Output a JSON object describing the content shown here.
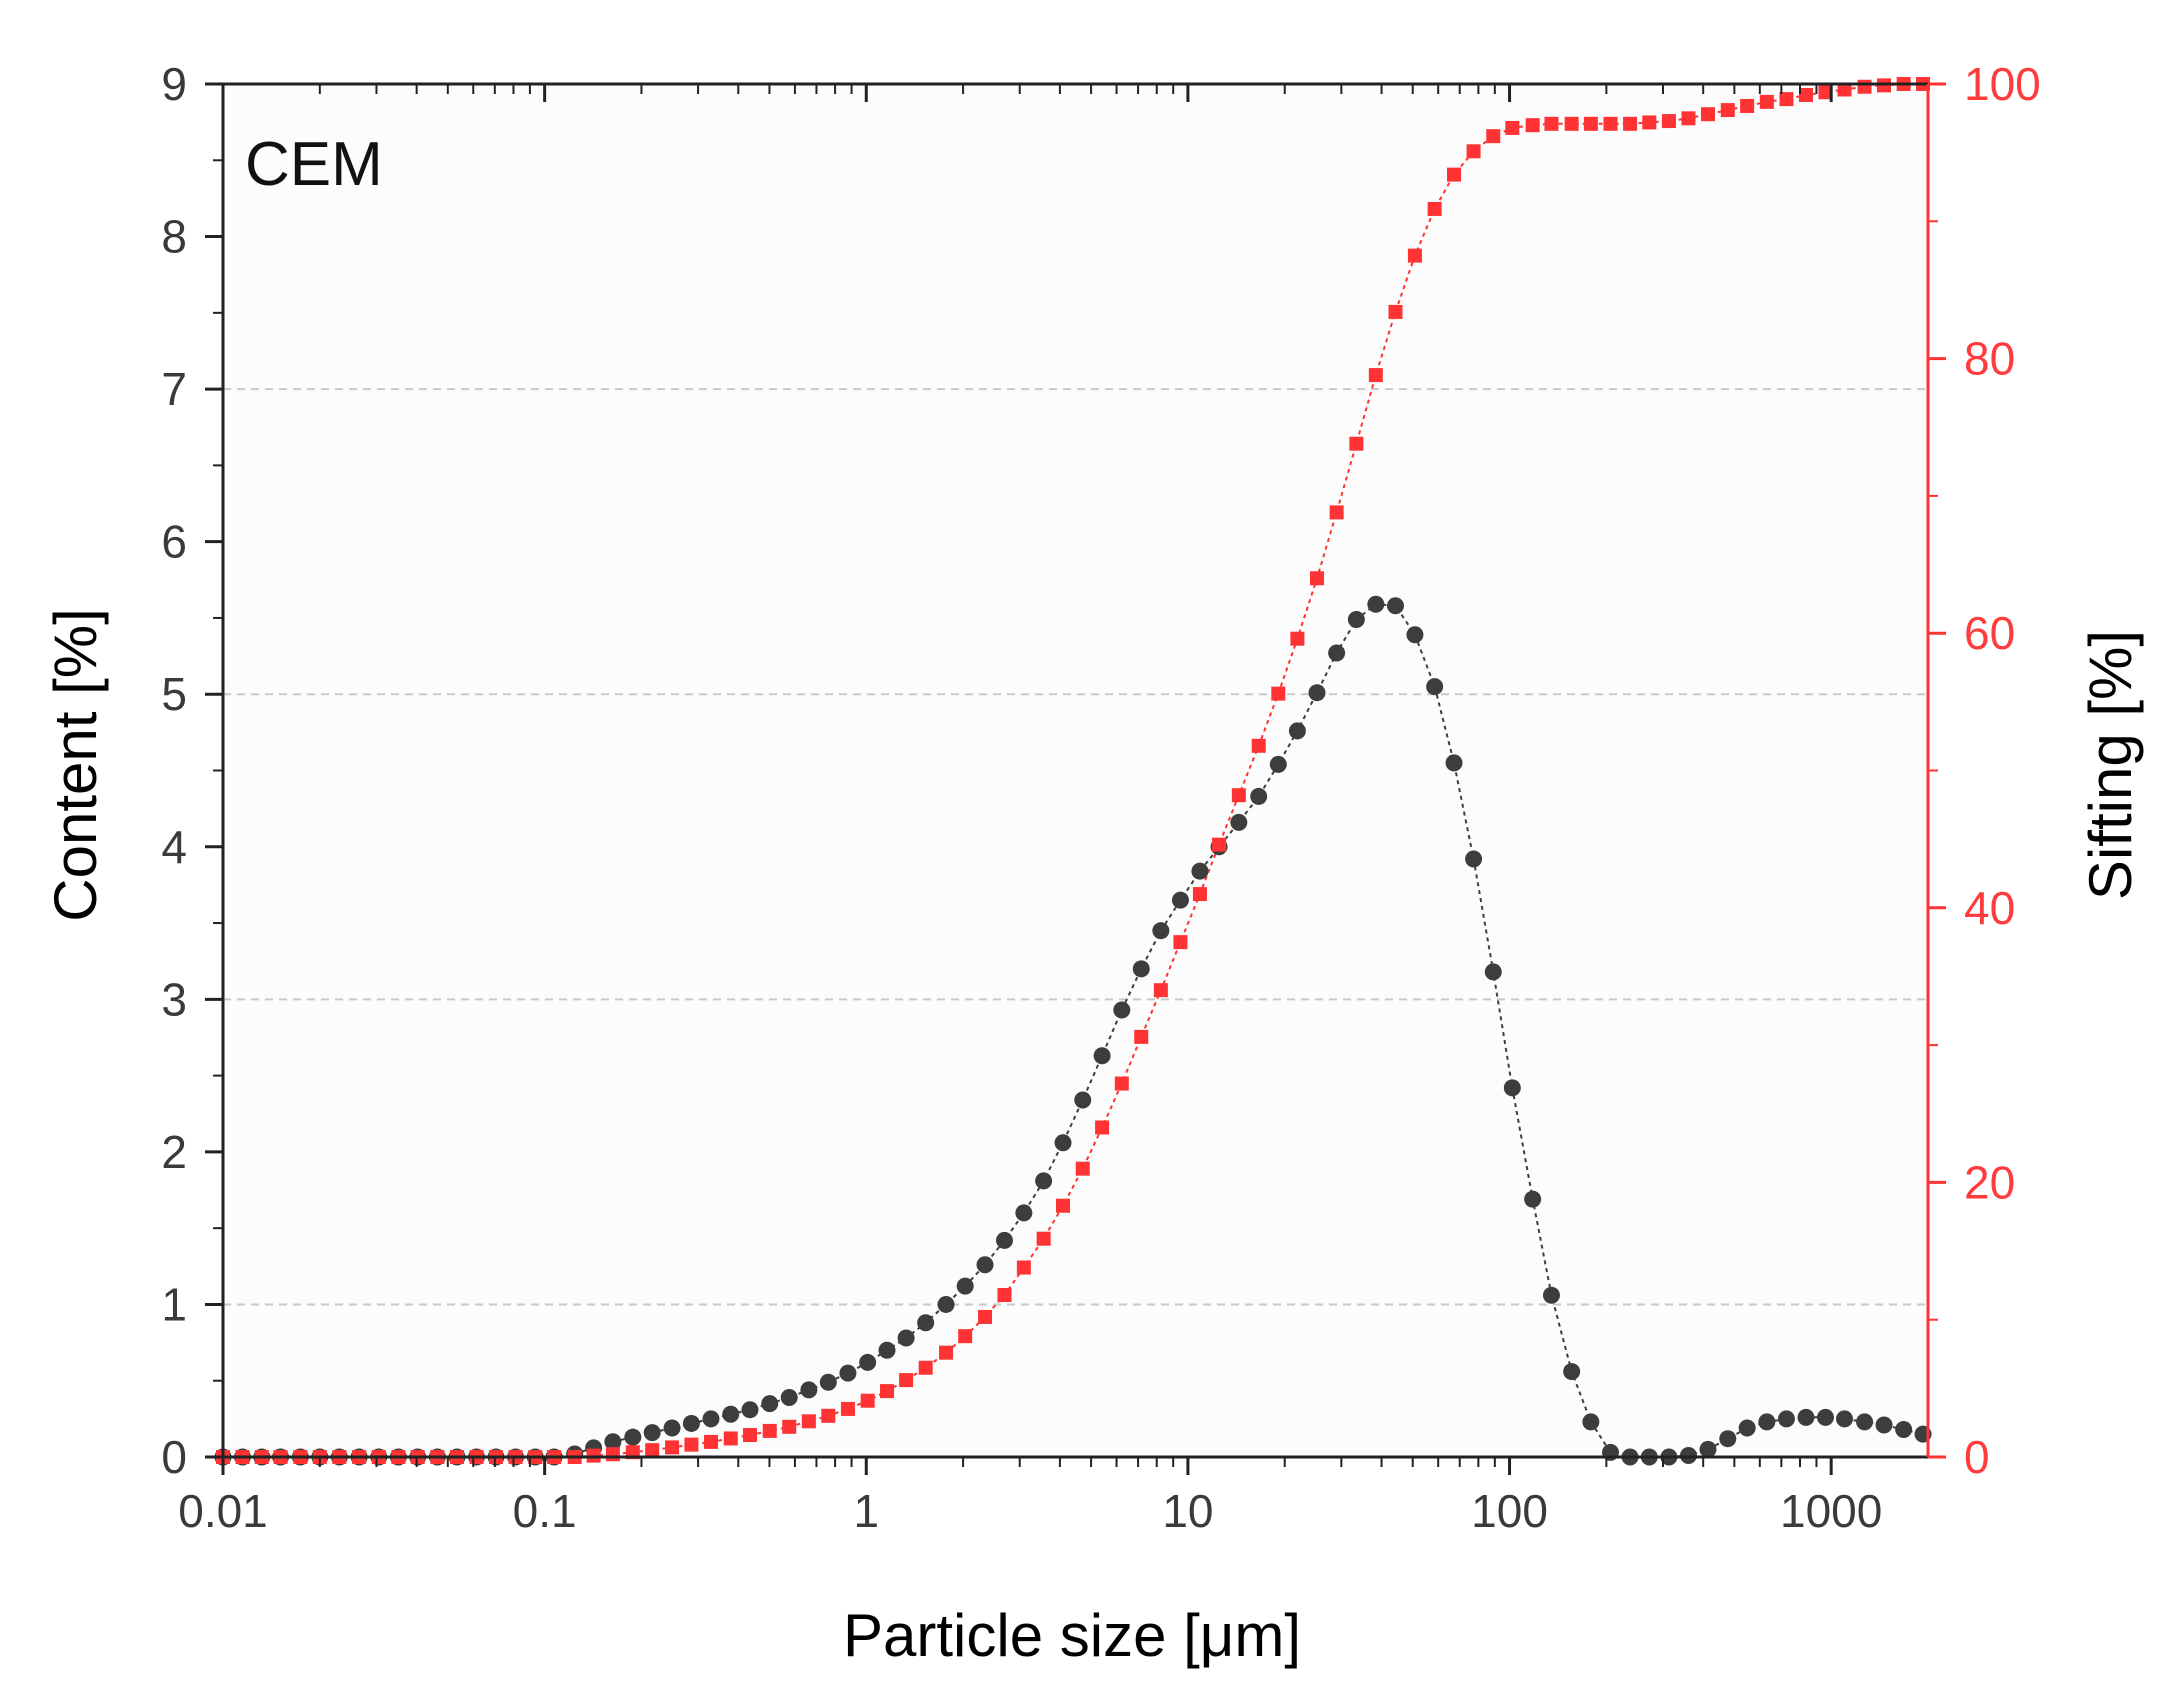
{
  "chart_data": {
    "type": "scatter",
    "title": "",
    "annotation": "CEM",
    "xlabel": "Particle size [μm]",
    "ylabel_left": "Content [%]",
    "ylabel_right": "Sifting [%]",
    "x_scale": "log",
    "xlim": [
      0.01,
      2000
    ],
    "ylim_left": [
      0,
      9
    ],
    "ylim_right": [
      0,
      100
    ],
    "x_ticks": [
      0.01,
      0.1,
      1,
      10,
      100,
      1000
    ],
    "x_tick_labels": [
      "0.01",
      "0.1",
      "1",
      "10",
      "100",
      "1000"
    ],
    "y_left_ticks": [
      0,
      1,
      2,
      3,
      4,
      5,
      6,
      7,
      8,
      9
    ],
    "y_left_tick_labels": [
      "0",
      "1",
      "2",
      "3",
      "4",
      "5",
      "6",
      "7",
      "8",
      "9"
    ],
    "y_right_ticks": [
      0,
      20,
      40,
      60,
      80,
      100
    ],
    "y_right_tick_labels": [
      "0",
      "20",
      "40",
      "60",
      "80",
      "100"
    ],
    "gridlines_left_y": [
      1,
      3,
      5,
      7
    ],
    "colors": {
      "content_series": "#3d3d3d",
      "sifting_series": "#ff3333",
      "left_axis": "#3a3a3a",
      "right_axis": "#ff3333",
      "grid": "#c8c8c8"
    },
    "series": [
      {
        "name": "Content",
        "axis": "left",
        "marker": "circle",
        "x": [
          0.01,
          0.0115,
          0.0132,
          0.0151,
          0.0174,
          0.02,
          0.023,
          0.0265,
          0.0305,
          0.0351,
          0.0403,
          0.0464,
          0.0534,
          0.0614,
          0.0706,
          0.0812,
          0.0935,
          0.107,
          0.124,
          0.142,
          0.163,
          0.188,
          0.216,
          0.249,
          0.286,
          0.329,
          0.379,
          0.435,
          0.501,
          0.576,
          0.663,
          0.762,
          0.877,
          1.01,
          1.16,
          1.33,
          1.53,
          1.77,
          2.03,
          2.34,
          2.69,
          3.09,
          3.56,
          4.09,
          4.71,
          5.41,
          6.23,
          7.16,
          8.24,
          9.48,
          10.9,
          12.5,
          14.4,
          16.6,
          19.1,
          21.9,
          25.2,
          29.0,
          33.4,
          38.4,
          44.2,
          50.8,
          58.5,
          67.2,
          77.3,
          89.0,
          102,
          118,
          135,
          156,
          179,
          206,
          237,
          272,
          313,
          360,
          414,
          477,
          548,
          631,
          726,
          835,
          960,
          1100,
          1270,
          1460,
          1680,
          1930
        ],
        "values": [
          0,
          0,
          0,
          0,
          0,
          0,
          0,
          0,
          0,
          0,
          0,
          0,
          0,
          0,
          0,
          0,
          0,
          0,
          0.02,
          0.06,
          0.1,
          0.13,
          0.16,
          0.19,
          0.22,
          0.25,
          0.28,
          0.31,
          0.35,
          0.39,
          0.44,
          0.49,
          0.55,
          0.62,
          0.7,
          0.78,
          0.88,
          1.0,
          1.12,
          1.26,
          1.42,
          1.6,
          1.81,
          2.06,
          2.34,
          2.63,
          2.93,
          3.2,
          3.45,
          3.65,
          3.84,
          4.0,
          4.16,
          4.33,
          4.54,
          4.76,
          5.01,
          5.27,
          5.49,
          5.59,
          5.58,
          5.39,
          5.05,
          4.55,
          3.92,
          3.18,
          2.42,
          1.69,
          1.06,
          0.56,
          0.23,
          0.03,
          0.0,
          0.0,
          0.0,
          0.01,
          0.05,
          0.12,
          0.19,
          0.23,
          0.25,
          0.26,
          0.26,
          0.25,
          0.23,
          0.21,
          0.18,
          0.15
        ]
      },
      {
        "name": "Sifting",
        "axis": "right",
        "marker": "square",
        "x": [
          0.01,
          0.0115,
          0.0132,
          0.0151,
          0.0174,
          0.02,
          0.023,
          0.0265,
          0.0305,
          0.0351,
          0.0403,
          0.0464,
          0.0534,
          0.0614,
          0.0706,
          0.0812,
          0.0935,
          0.107,
          0.124,
          0.142,
          0.163,
          0.188,
          0.216,
          0.249,
          0.286,
          0.329,
          0.379,
          0.435,
          0.501,
          0.576,
          0.663,
          0.762,
          0.877,
          1.01,
          1.16,
          1.33,
          1.53,
          1.77,
          2.03,
          2.34,
          2.69,
          3.09,
          3.56,
          4.09,
          4.71,
          5.41,
          6.23,
          7.16,
          8.24,
          9.48,
          10.9,
          12.5,
          14.4,
          16.6,
          19.1,
          21.9,
          25.2,
          29.0,
          33.4,
          38.4,
          44.2,
          50.8,
          58.5,
          67.2,
          77.3,
          89.0,
          102,
          118,
          135,
          156,
          179,
          206,
          237,
          272,
          313,
          360,
          414,
          477,
          548,
          631,
          726,
          835,
          960,
          1100,
          1270,
          1460,
          1680,
          1930
        ],
        "values": [
          0,
          0,
          0,
          0,
          0,
          0,
          0,
          0,
          0,
          0,
          0,
          0,
          0,
          0,
          0,
          0,
          0,
          0,
          0,
          0.1,
          0.2,
          0.35,
          0.5,
          0.7,
          0.9,
          1.1,
          1.35,
          1.6,
          1.9,
          2.2,
          2.6,
          3.0,
          3.5,
          4.1,
          4.8,
          5.6,
          6.5,
          7.6,
          8.8,
          10.2,
          11.8,
          13.8,
          15.9,
          18.3,
          21.0,
          24.0,
          27.2,
          30.6,
          34.0,
          37.5,
          41.0,
          44.6,
          48.2,
          51.8,
          55.6,
          59.6,
          64.0,
          68.8,
          73.8,
          78.8,
          83.4,
          87.5,
          90.9,
          93.4,
          95.1,
          96.2,
          96.8,
          97.0,
          97.1,
          97.1,
          97.1,
          97.1,
          97.1,
          97.2,
          97.3,
          97.5,
          97.8,
          98.1,
          98.4,
          98.7,
          98.9,
          99.2,
          99.4,
          99.6,
          99.8,
          99.9,
          100,
          100
        ]
      }
    ]
  }
}
